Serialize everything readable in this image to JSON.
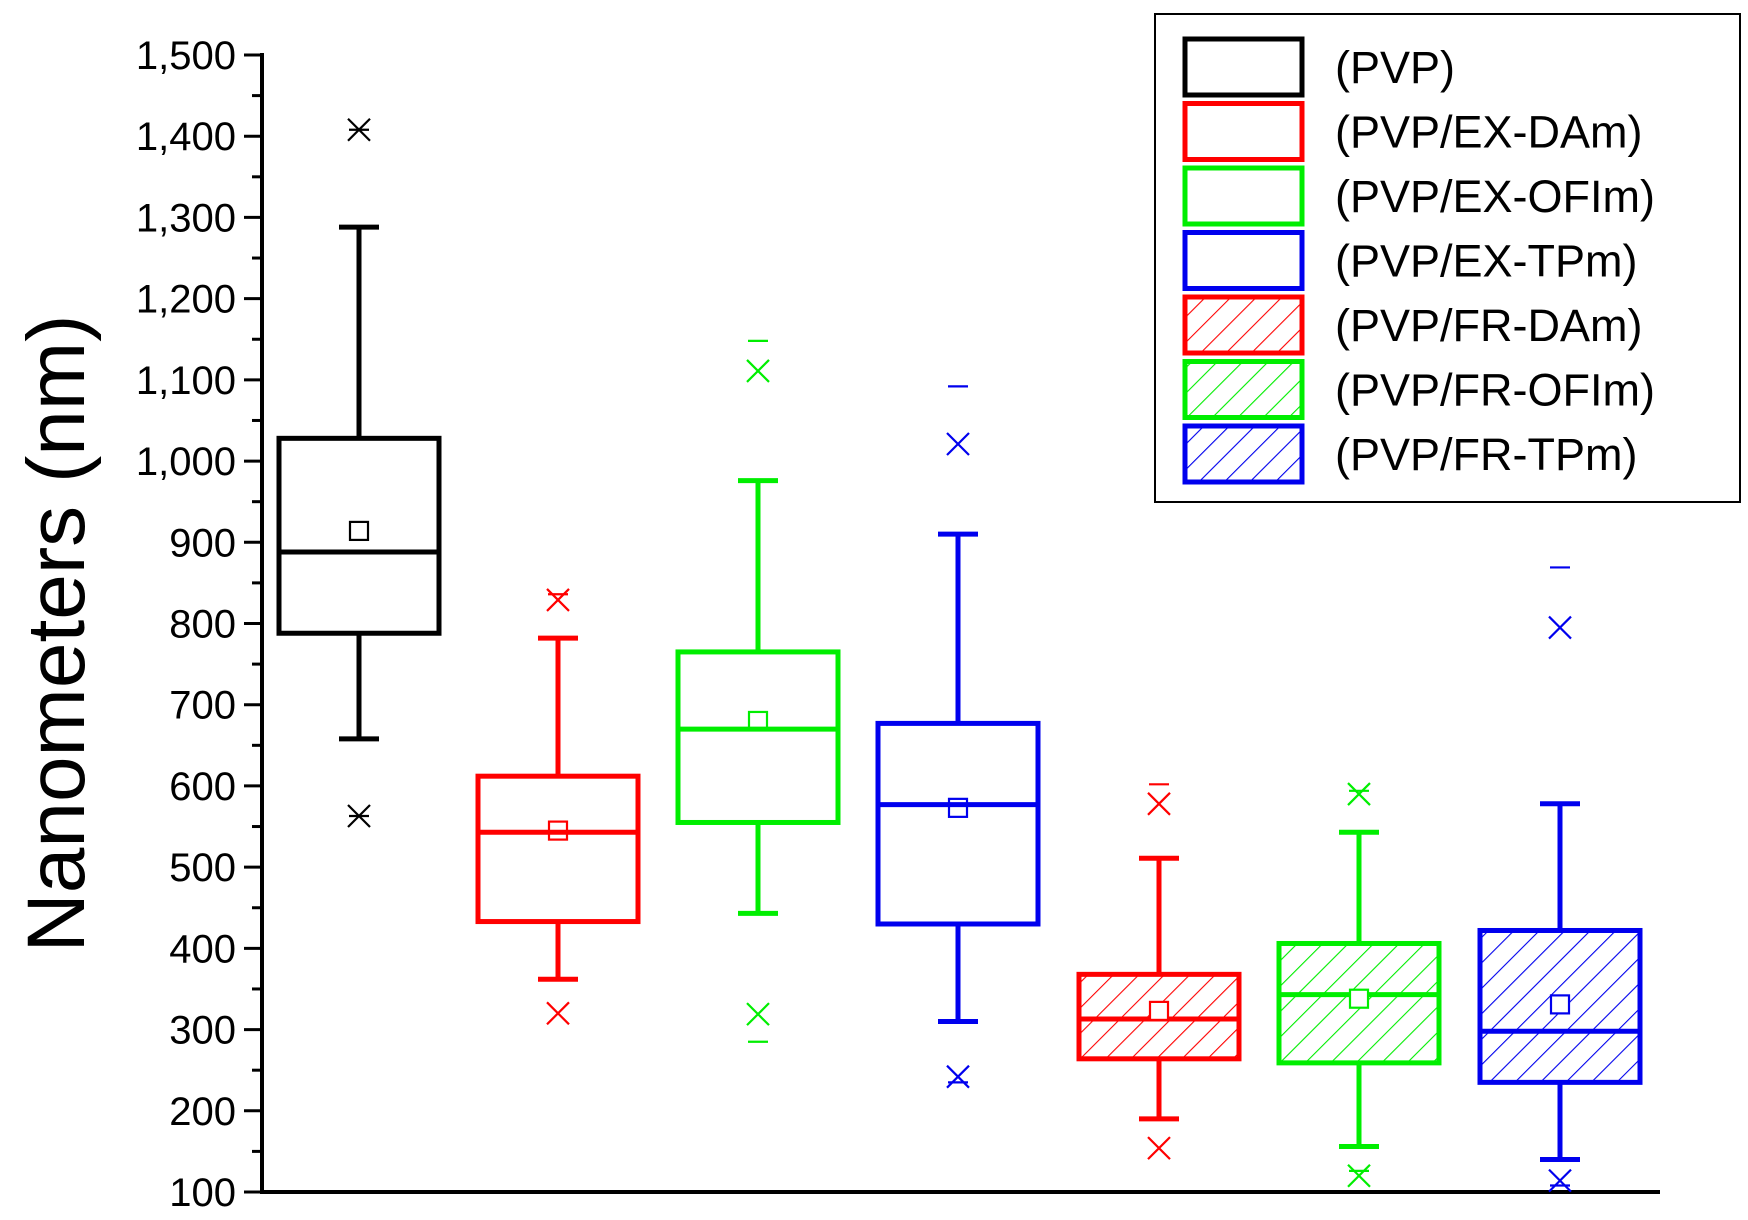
{
  "chart_data": {
    "type": "box",
    "title": "",
    "xlabel": "",
    "ylabel": "Nanometers (nm)",
    "ylim": [
      100,
      1500
    ],
    "yticks": [
      100,
      200,
      300,
      400,
      500,
      600,
      700,
      800,
      900,
      1000,
      1100,
      1200,
      1300,
      1400,
      1500
    ],
    "ytick_labels": [
      "100",
      "200",
      "300",
      "400",
      "500",
      "600",
      "700",
      "800",
      "900",
      "1,000",
      "1,100",
      "1,200",
      "1,300",
      "1,400",
      "1,500"
    ],
    "legend_position": "top-right",
    "series": [
      {
        "name": "(PVP)",
        "color": "#000000",
        "hatched": false,
        "q1": 788,
        "median": 888,
        "q3": 1028,
        "mean": 914,
        "whisker_low": 658,
        "whisker_high": 1288,
        "x_low": 563,
        "x_high": 1408,
        "bar_low": 563,
        "bar_high": 1408
      },
      {
        "name": "(PVP/EX-DAm)",
        "color": "#ff0000",
        "hatched": false,
        "q1": 433,
        "median": 543,
        "q3": 612,
        "mean": 545,
        "whisker_low": 362,
        "whisker_high": 782,
        "x_low": 320,
        "x_high": 829,
        "bar_low": null,
        "bar_high": 836
      },
      {
        "name": "(PVP/EX-OFIm)",
        "color": "#00ee00",
        "hatched": false,
        "q1": 555,
        "median": 670,
        "q3": 765,
        "mean": 680,
        "whisker_low": 443,
        "whisker_high": 976,
        "x_low": 319,
        "x_high": 1111,
        "bar_low": 285,
        "bar_high": 1148
      },
      {
        "name": "(PVP/EX-TPm)",
        "color": "#0000ee",
        "hatched": false,
        "q1": 430,
        "median": 577,
        "q3": 677,
        "mean": 573,
        "whisker_low": 310,
        "whisker_high": 910,
        "x_low": 242,
        "x_high": 1021,
        "bar_low": 235,
        "bar_high": 1092
      },
      {
        "name": "(PVP/FR-DAm)",
        "color": "#ff0000",
        "hatched": true,
        "q1": 264,
        "median": 313,
        "q3": 368,
        "mean": 323,
        "whisker_low": 190,
        "whisker_high": 511,
        "x_low": 154,
        "x_high": 578,
        "bar_low": null,
        "bar_high": 602
      },
      {
        "name": "(PVP/FR-OFIm)",
        "color": "#00ee00",
        "hatched": true,
        "q1": 259,
        "median": 343,
        "q3": 406,
        "mean": 338,
        "whisker_low": 156,
        "whisker_high": 543,
        "x_low": 120,
        "x_high": 590,
        "bar_low": 126,
        "bar_high": 594
      },
      {
        "name": "(PVP/FR-TPm)",
        "color": "#0000ee",
        "hatched": true,
        "q1": 235,
        "median": 298,
        "q3": 422,
        "mean": 331,
        "whisker_low": 140,
        "whisker_high": 578,
        "x_low": 114,
        "x_high": 795,
        "bar_low": 108,
        "bar_high": 869
      }
    ]
  }
}
